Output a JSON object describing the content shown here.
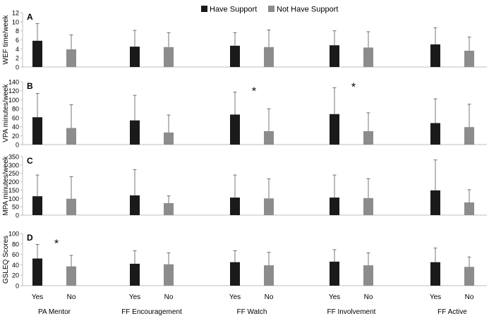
{
  "legend": [
    {
      "name": "Have Support",
      "color": "#1a1a1a"
    },
    {
      "name": "Not Have Support",
      "color": "#8c8c8c"
    }
  ],
  "colors": {
    "have": "#1a1a1a",
    "not_have": "#8c8c8c",
    "axis": "#bfbfbf",
    "text": "#000000"
  },
  "x_groups": [
    "PA Mentor",
    "FF Encouragement",
    "FF Watch",
    "FF Involvement",
    "FF Active"
  ],
  "x_sublabels": [
    "Yes",
    "No"
  ],
  "chart_data": [
    {
      "type": "bar",
      "panel": "A",
      "ylabel": "WEF time/week",
      "ylim": [
        0,
        12
      ],
      "yticks": [
        0,
        2,
        4,
        6,
        8,
        10,
        12
      ],
      "categories": [
        "PA Mentor",
        "FF Encouragement",
        "FF Watch",
        "FF Involvement",
        "FF Active"
      ],
      "series": [
        {
          "name": "Have Support",
          "values": [
            5.8,
            4.5,
            4.7,
            4.8,
            5.0
          ],
          "error_upper": [
            9.6,
            8.1,
            7.6,
            8.0,
            8.7
          ]
        },
        {
          "name": "Not Have Support",
          "values": [
            3.9,
            4.4,
            4.4,
            4.3,
            3.6
          ],
          "error_upper": [
            7.1,
            7.6,
            8.2,
            7.8,
            6.6
          ]
        }
      ],
      "significance": []
    },
    {
      "type": "bar",
      "panel": "B",
      "ylabel": "VPA minutes/week",
      "ylim": [
        0,
        140
      ],
      "yticks": [
        0,
        20,
        40,
        60,
        80,
        100,
        120,
        140
      ],
      "categories": [
        "PA Mentor",
        "FF Encouragement",
        "FF Watch",
        "FF Involvement",
        "FF Active"
      ],
      "series": [
        {
          "name": "Have Support",
          "values": [
            61,
            54,
            67,
            68,
            48
          ],
          "error_upper": [
            114,
            110,
            117,
            127,
            102
          ]
        },
        {
          "name": "Not Have Support",
          "values": [
            37,
            27,
            30,
            30,
            39
          ],
          "error_upper": [
            89,
            66,
            80,
            71,
            90
          ]
        }
      ],
      "significance": [
        {
          "category": "FF Watch",
          "symbol": "*"
        },
        {
          "category": "FF Involvement",
          "symbol": "*"
        }
      ]
    },
    {
      "type": "bar",
      "panel": "C",
      "ylabel": "MPA minutes/week",
      "ylim": [
        0,
        350
      ],
      "yticks": [
        0,
        50,
        100,
        150,
        200,
        250,
        300,
        350
      ],
      "categories": [
        "PA Mentor",
        "FF Encouragement",
        "FF Watch",
        "FF Involvement",
        "FF Active"
      ],
      "series": [
        {
          "name": "Have Support",
          "values": [
            113,
            118,
            105,
            105,
            148
          ],
          "error_upper": [
            240,
            272,
            240,
            240,
            330
          ]
        },
        {
          "name": "Not Have Support",
          "values": [
            98,
            72,
            100,
            102,
            76
          ],
          "error_upper": [
            230,
            115,
            218,
            218,
            152
          ]
        }
      ],
      "significance": []
    },
    {
      "type": "bar",
      "panel": "D",
      "ylabel": "GSLEQ Scores",
      "ylim": [
        0,
        100
      ],
      "yticks": [
        0,
        20,
        40,
        60,
        80,
        100
      ],
      "categories": [
        "PA Mentor",
        "FF Encouragement",
        "FF Watch",
        "FF Involvement",
        "FF Active"
      ],
      "series": [
        {
          "name": "Have Support",
          "values": [
            52,
            42,
            45,
            46,
            45
          ],
          "error_upper": [
            79,
            67,
            67,
            69,
            72
          ]
        },
        {
          "name": "Not Have Support",
          "values": [
            37,
            41,
            39,
            39,
            36
          ],
          "error_upper": [
            58,
            63,
            64,
            63,
            55
          ]
        }
      ],
      "significance": [
        {
          "category": "PA Mentor",
          "symbol": "*"
        }
      ]
    }
  ]
}
